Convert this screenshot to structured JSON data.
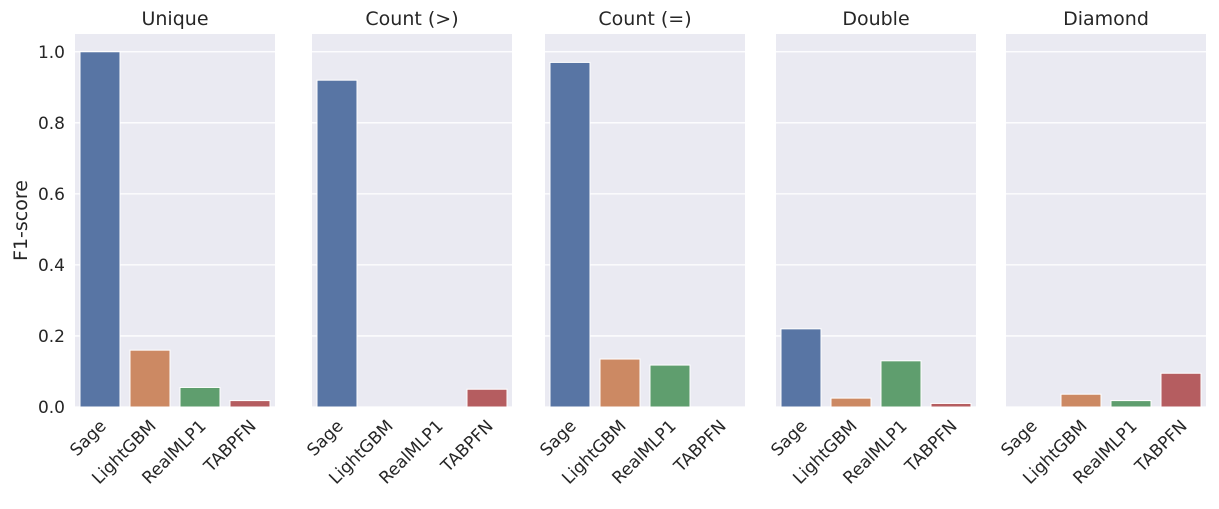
{
  "chart_data": {
    "type": "bar",
    "ylabel": "F1-score",
    "ylim": [
      0,
      1.05
    ],
    "yticks": [
      "0.0",
      "0.2",
      "0.4",
      "0.6",
      "0.8",
      "1.0"
    ],
    "categories": [
      "Sage",
      "LightGBM",
      "RealMLP1",
      "TABPFN"
    ],
    "colors": [
      "#5875a4",
      "#cc8963",
      "#5f9e6e",
      "#b55d60"
    ],
    "background": "#eaeaf2",
    "grid": true,
    "panels": [
      {
        "title": "Unique",
        "values": [
          1.0,
          0.16,
          0.055,
          0.018
        ]
      },
      {
        "title": "Count (>)",
        "values": [
          0.92,
          0.0,
          0.0,
          0.05
        ]
      },
      {
        "title": "Count (=)",
        "values": [
          0.97,
          0.135,
          0.118,
          0.0
        ]
      },
      {
        "title": "Double",
        "values": [
          0.22,
          0.025,
          0.13,
          0.01
        ]
      },
      {
        "title": "Diamond",
        "values": [
          0.0,
          0.036,
          0.018,
          0.095
        ]
      }
    ]
  }
}
